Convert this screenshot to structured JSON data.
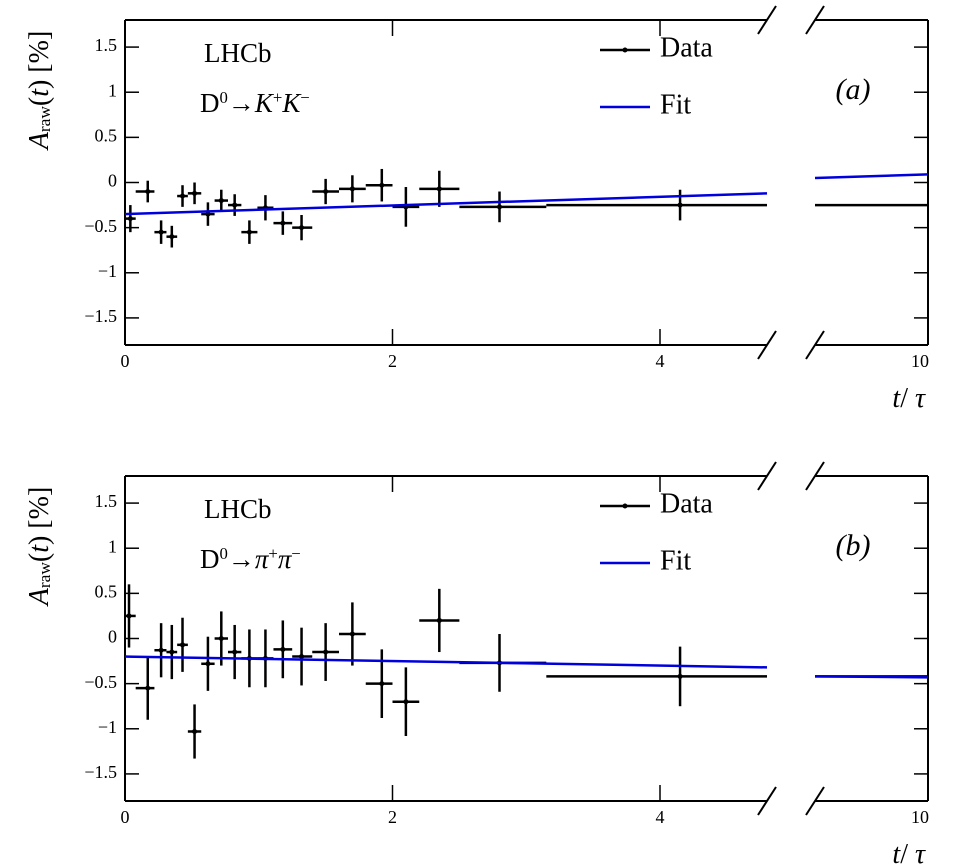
{
  "chart_data": [
    {
      "type": "errorbar",
      "label": "LHCb",
      "decay": [
        [
          "D",
          ""
        ],
        [
          "0",
          "sup"
        ],
        [
          "→",
          ""
        ],
        [
          "K",
          "i"
        ],
        [
          "+",
          "sup"
        ],
        [
          "K",
          "i"
        ],
        [
          "−",
          "sup"
        ]
      ],
      "panel": "(a)",
      "ylabel": [
        [
          "A",
          "i"
        ],
        [
          "raw",
          "sub"
        ],
        [
          "(",
          ""
        ],
        [
          "t",
          "i"
        ],
        [
          ") [%]",
          ""
        ]
      ],
      "xlabel": [
        [
          "t",
          "i"
        ],
        [
          "/ ",
          ""
        ],
        [
          "τ",
          "i"
        ]
      ],
      "xlim_segments": [
        [
          0,
          4.8
        ],
        [
          9.15,
          10
        ]
      ],
      "xticks": [
        0,
        2,
        4,
        10
      ],
      "ylim": [
        -1.8,
        1.8
      ],
      "yticks": [
        {
          "value": -1.5,
          "label": "−1.5"
        },
        {
          "value": -1,
          "label": "−1"
        },
        {
          "value": -0.5,
          "label": "−0.5"
        },
        0,
        0.5,
        1,
        1.5
      ],
      "series": [
        {
          "name": "Data",
          "color": "#000000",
          "x": [
            0.04,
            0.17,
            0.27,
            0.35,
            0.43,
            0.52,
            0.62,
            0.72,
            0.82,
            0.93,
            1.05,
            1.18,
            1.32,
            1.5,
            1.7,
            1.92,
            2.1,
            2.35,
            2.8,
            4.15
          ],
          "bin_edges": [
            0,
            0.08,
            0.22,
            0.31,
            0.39,
            0.47,
            0.57,
            0.67,
            0.77,
            0.87,
            0.99,
            1.11,
            1.25,
            1.4,
            1.6,
            1.8,
            2.0,
            2.2,
            2.5,
            3.15,
            10
          ],
          "values": [
            -0.4,
            -0.1,
            -0.55,
            -0.6,
            -0.15,
            -0.12,
            -0.35,
            -0.2,
            -0.25,
            -0.55,
            -0.28,
            -0.45,
            -0.5,
            -0.1,
            -0.07,
            -0.03,
            -0.27,
            -0.07,
            -0.27,
            -0.25
          ],
          "yerr": [
            0.15,
            0.12,
            0.13,
            0.12,
            0.12,
            0.12,
            0.13,
            0.12,
            0.12,
            0.13,
            0.14,
            0.13,
            0.14,
            0.14,
            0.15,
            0.18,
            0.22,
            0.2,
            0.17,
            0.17
          ]
        },
        {
          "name": "Fit",
          "color": "#0000dd",
          "x": [
            0,
            4.8,
            9.15,
            10
          ],
          "values": [
            -0.35,
            -0.12,
            0.05,
            0.09
          ]
        }
      ]
    },
    {
      "type": "errorbar",
      "label": "LHCb",
      "decay": [
        [
          "D",
          ""
        ],
        [
          "0",
          "sup"
        ],
        [
          "→",
          ""
        ],
        [
          "π",
          "i"
        ],
        [
          "+",
          "sup"
        ],
        [
          "π",
          "i"
        ],
        [
          "−",
          "sup"
        ]
      ],
      "panel": "(b)",
      "ylabel": [
        [
          "A",
          "i"
        ],
        [
          "raw",
          "sub"
        ],
        [
          "(",
          ""
        ],
        [
          "t",
          "i"
        ],
        [
          ") [%]",
          ""
        ]
      ],
      "xlabel": [
        [
          "t",
          "i"
        ],
        [
          "/ ",
          ""
        ],
        [
          "τ",
          "i"
        ]
      ],
      "xlim_segments": [
        [
          0,
          4.8
        ],
        [
          9.15,
          10
        ]
      ],
      "xticks": [
        0,
        2,
        4,
        10
      ],
      "ylim": [
        -1.8,
        1.8
      ],
      "yticks": [
        {
          "value": -1.5,
          "label": "−1.5"
        },
        {
          "value": -1,
          "label": "−1"
        },
        {
          "value": -0.5,
          "label": "−0.5"
        },
        0,
        0.5,
        1,
        1.5
      ],
      "series": [
        {
          "name": "Data",
          "color": "#000000",
          "x": [
            0.03,
            0.17,
            0.27,
            0.35,
            0.43,
            0.52,
            0.62,
            0.72,
            0.82,
            0.93,
            1.05,
            1.18,
            1.32,
            1.5,
            1.7,
            1.92,
            2.1,
            2.35,
            2.8,
            4.15
          ],
          "bin_edges": [
            0,
            0.08,
            0.22,
            0.31,
            0.39,
            0.47,
            0.57,
            0.67,
            0.77,
            0.87,
            0.99,
            1.11,
            1.25,
            1.4,
            1.6,
            1.8,
            2.0,
            2.2,
            2.5,
            3.15,
            10
          ],
          "values": [
            0.25,
            -0.55,
            -0.13,
            -0.15,
            -0.07,
            -1.03,
            -0.28,
            0.0,
            -0.15,
            -0.22,
            -0.22,
            -0.12,
            -0.2,
            -0.15,
            0.05,
            -0.5,
            -0.7,
            0.2,
            -0.27,
            -0.42
          ],
          "yerr": [
            0.35,
            0.35,
            0.3,
            0.3,
            0.3,
            0.3,
            0.3,
            0.3,
            0.3,
            0.32,
            0.32,
            0.32,
            0.32,
            0.32,
            0.35,
            0.38,
            0.38,
            0.35,
            0.32,
            0.33
          ]
        },
        {
          "name": "Fit",
          "color": "#0000dd",
          "x": [
            0,
            4.8,
            9.15,
            10
          ],
          "values": [
            -0.2,
            -0.32,
            -0.42,
            -0.43
          ]
        }
      ]
    }
  ]
}
